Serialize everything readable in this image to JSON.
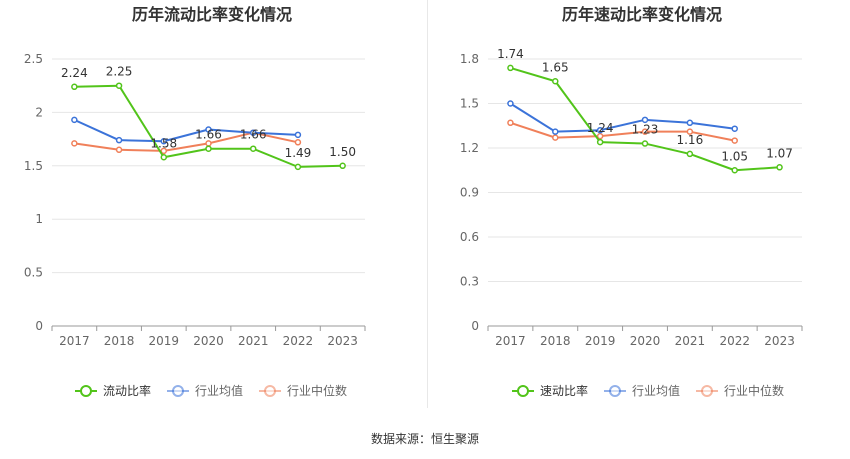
{
  "chart_data": [
    {
      "type": "line",
      "title": "历年流动比率变化情况",
      "categories": [
        "2017",
        "2018",
        "2019",
        "2020",
        "2021",
        "2022",
        "2023"
      ],
      "ylim": [
        0,
        2.5
      ],
      "yticks": [
        "0",
        "0.5",
        "1",
        "1.5",
        "2",
        "2.5"
      ],
      "ytick_values": [
        0,
        0.5,
        1,
        1.5,
        2,
        2.5
      ],
      "series": [
        {
          "name": "流动比率",
          "color": "#52c41a",
          "values": [
            2.24,
            2.25,
            1.58,
            1.66,
            1.66,
            1.49,
            1.5
          ],
          "labels": [
            "2.24",
            "2.25",
            "1.58",
            "1.66",
            "1.66",
            "1.49",
            "1.50"
          ],
          "show_labels": true
        },
        {
          "name": "行业均值",
          "color": "#3b73d9",
          "values": [
            1.93,
            1.74,
            1.73,
            1.84,
            1.81,
            1.79,
            null
          ],
          "show_labels": false
        },
        {
          "name": "行业中位数",
          "color": "#f0805a",
          "values": [
            1.71,
            1.65,
            1.64,
            1.71,
            1.81,
            1.72,
            null
          ],
          "show_labels": false
        }
      ],
      "legend": [
        "流动比率",
        "行业均值",
        "行业中位数"
      ],
      "legend_position": "bottom"
    },
    {
      "type": "line",
      "title": "历年速动比率变化情况",
      "categories": [
        "2017",
        "2018",
        "2019",
        "2020",
        "2021",
        "2022",
        "2023"
      ],
      "ylim": [
        0,
        1.8
      ],
      "yticks": [
        "0",
        "0.3",
        "0.6",
        "0.9",
        "1.2",
        "1.5",
        "1.8"
      ],
      "ytick_values": [
        0,
        0.3,
        0.6,
        0.9,
        1.2,
        1.5,
        1.8
      ],
      "series": [
        {
          "name": "速动比率",
          "color": "#52c41a",
          "values": [
            1.74,
            1.65,
            1.24,
            1.23,
            1.16,
            1.05,
            1.07
          ],
          "labels": [
            "1.74",
            "1.65",
            "1.24",
            "1.23",
            "1.16",
            "1.05",
            "1.07"
          ],
          "show_labels": true
        },
        {
          "name": "行业均值",
          "color": "#3b73d9",
          "values": [
            1.5,
            1.31,
            1.32,
            1.39,
            1.37,
            1.33,
            null
          ],
          "show_labels": false
        },
        {
          "name": "行业中位数",
          "color": "#f0805a",
          "values": [
            1.37,
            1.27,
            1.28,
            1.31,
            1.31,
            1.25,
            null
          ],
          "show_labels": false
        }
      ],
      "legend": [
        "速动比率",
        "行业均值",
        "行业中位数"
      ],
      "legend_position": "bottom"
    }
  ],
  "footer": {
    "source": "数据来源：恒生聚源"
  },
  "colors": {
    "grid": "#e6e6e6",
    "axis": "#999999",
    "tick_text": "#666666",
    "title": "#333333",
    "label": "#333333"
  }
}
